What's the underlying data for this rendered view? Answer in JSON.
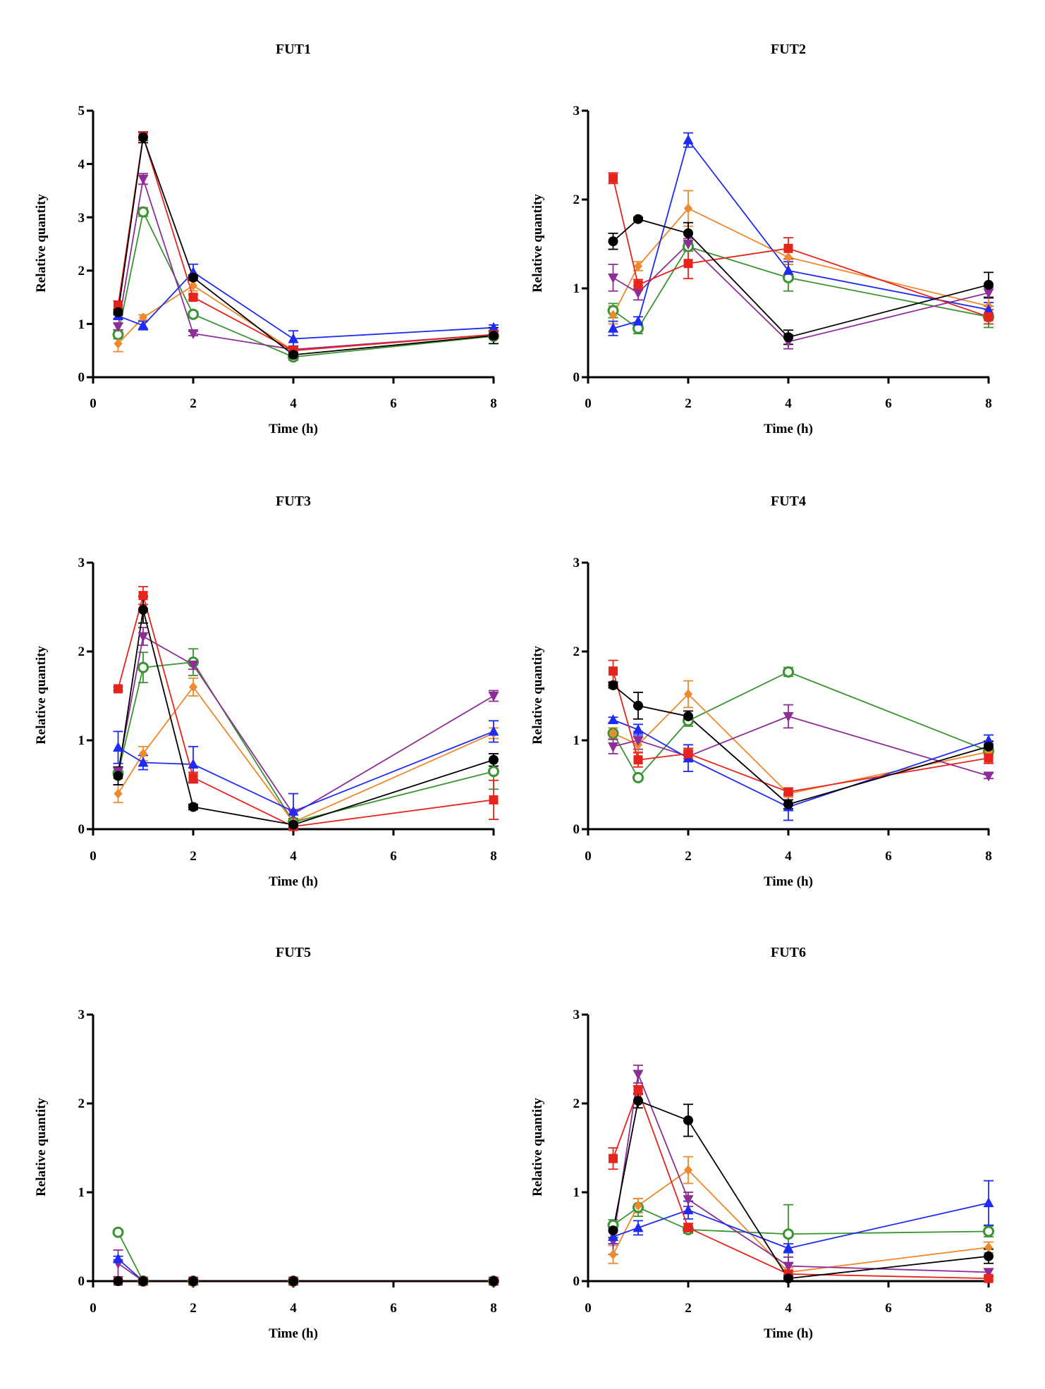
{
  "figure": {
    "ylabel_text": "Relative quantity",
    "xlabel_text": "Time (h)"
  },
  "series_styles": [
    {
      "name": "black",
      "color": "#000000",
      "marker": "circle"
    },
    {
      "name": "red",
      "color": "#e8231c",
      "marker": "square"
    },
    {
      "name": "blue",
      "color": "#1e2bf5",
      "marker": "triangle-up"
    },
    {
      "name": "purple",
      "color": "#8e2d97",
      "marker": "triangle-down"
    },
    {
      "name": "orange",
      "color": "#f0882c",
      "marker": "diamond"
    },
    {
      "name": "green",
      "color": "#3a9432",
      "marker": "circle-open"
    }
  ],
  "chart_data": [
    {
      "type": "line",
      "title": "FUT1",
      "xlabel": "Time (h)",
      "ylabel": "Relative quantity",
      "x": [
        0.5,
        1,
        2,
        4,
        8
      ],
      "xlim": [
        0,
        8
      ],
      "ylim": [
        0,
        5
      ],
      "xticks": [
        "0",
        "2",
        "4",
        "6",
        "8"
      ],
      "yticks": [
        "0",
        "1",
        "2",
        "3",
        "4",
        "5"
      ],
      "series": [
        {
          "name": "black",
          "values": [
            1.22,
            4.5,
            1.87,
            0.42,
            0.78
          ],
          "errors": [
            0.05,
            0.1,
            0.05,
            0.04,
            0.15
          ]
        },
        {
          "name": "red",
          "values": [
            1.35,
            4.52,
            1.5,
            0.5,
            0.8
          ],
          "errors": [
            0.08,
            0.08,
            0.05,
            0.04,
            0.06
          ]
        },
        {
          "name": "blue",
          "values": [
            1.15,
            0.97,
            1.97,
            0.72,
            0.93
          ],
          "errors": [
            0.05,
            0.08,
            0.15,
            0.15,
            0.05
          ]
        },
        {
          "name": "purple",
          "values": [
            0.95,
            3.72,
            0.82,
            0.52,
            0.8
          ],
          "errors": [
            0.06,
            0.1,
            0.04,
            0.05,
            0.05
          ]
        },
        {
          "name": "orange",
          "values": [
            0.63,
            1.12,
            1.72,
            0.5,
            0.8
          ],
          "errors": [
            0.15,
            0.05,
            0.1,
            0.05,
            0.05
          ]
        },
        {
          "name": "green",
          "values": [
            0.8,
            3.1,
            1.18,
            0.38,
            0.77
          ],
          "errors": [
            0.08,
            0.08,
            0.05,
            0.06,
            0.05
          ]
        }
      ]
    },
    {
      "type": "line",
      "title": "FUT2",
      "xlabel": "Time (h)",
      "ylabel": "Relative quantity",
      "x": [
        0.5,
        1,
        2,
        4,
        8
      ],
      "xlim": [
        0,
        8
      ],
      "ylim": [
        0,
        3
      ],
      "xticks": [
        "0",
        "2",
        "4",
        "6",
        "8"
      ],
      "yticks": [
        "0",
        "1",
        "2",
        "3"
      ],
      "series": [
        {
          "name": "black",
          "values": [
            1.53,
            1.78,
            1.62,
            0.45,
            1.04
          ],
          "errors": [
            0.09,
            0.02,
            0.12,
            0.08,
            0.14
          ]
        },
        {
          "name": "red",
          "values": [
            2.24,
            1.04,
            1.28,
            1.45,
            0.68
          ],
          "errors": [
            0.06,
            0.06,
            0.17,
            0.12,
            0.08
          ]
        },
        {
          "name": "blue",
          "values": [
            0.55,
            0.63,
            2.67,
            1.2,
            0.76
          ],
          "errors": [
            0.08,
            0.05,
            0.08,
            0.1,
            0.08
          ]
        },
        {
          "name": "purple",
          "values": [
            1.12,
            0.95,
            1.5,
            0.4,
            0.95
          ],
          "errors": [
            0.15,
            0.08,
            0.06,
            0.08,
            0.06
          ]
        },
        {
          "name": "orange",
          "values": [
            0.7,
            1.25,
            1.9,
            1.35,
            0.8
          ],
          "errors": [
            0.1,
            0.05,
            0.2,
            0.08,
            0.1
          ]
        },
        {
          "name": "green",
          "values": [
            0.75,
            0.55,
            1.47,
            1.12,
            0.68
          ],
          "errors": [
            0.08,
            0.06,
            0.05,
            0.15,
            0.12
          ]
        }
      ]
    },
    {
      "type": "line",
      "title": "FUT3",
      "xlabel": "Time (h)",
      "ylabel": "Relative quantity",
      "x": [
        0.5,
        1,
        2,
        4,
        8
      ],
      "xlim": [
        0,
        8
      ],
      "ylim": [
        0,
        3
      ],
      "xticks": [
        "0",
        "2",
        "4",
        "6",
        "8"
      ],
      "yticks": [
        "0",
        "1",
        "2",
        "3"
      ],
      "series": [
        {
          "name": "black",
          "values": [
            0.6,
            2.47,
            0.25,
            0.05,
            0.78
          ],
          "errors": [
            0.1,
            0.15,
            0.03,
            0.03,
            0.07
          ]
        },
        {
          "name": "red",
          "values": [
            1.58,
            2.63,
            0.58,
            0.03,
            0.33
          ],
          "errors": [
            0.02,
            0.1,
            0.06,
            0.02,
            0.22
          ]
        },
        {
          "name": "blue",
          "values": [
            0.92,
            0.75,
            0.73,
            0.2,
            1.1
          ],
          "errors": [
            0.18,
            0.08,
            0.2,
            0.2,
            0.12
          ]
        },
        {
          "name": "purple",
          "values": [
            0.65,
            2.17,
            1.85,
            0.17,
            1.5
          ],
          "errors": [
            0.05,
            0.1,
            0.05,
            0.05,
            0.06
          ]
        },
        {
          "name": "orange",
          "values": [
            0.4,
            0.85,
            1.6,
            0.08,
            1.08
          ],
          "errors": [
            0.1,
            0.08,
            0.1,
            0.04,
            0.06
          ]
        },
        {
          "name": "green",
          "values": [
            0.63,
            1.82,
            1.88,
            0.08,
            0.65
          ],
          "errors": [
            0.06,
            0.17,
            0.15,
            0.03,
            0.2
          ]
        }
      ]
    },
    {
      "type": "line",
      "title": "FUT4",
      "xlabel": "Time (h)",
      "ylabel": "Relative quantity",
      "x": [
        0.5,
        1,
        2,
        4,
        8
      ],
      "xlim": [
        0,
        8
      ],
      "ylim": [
        0,
        3
      ],
      "xticks": [
        "0",
        "2",
        "4",
        "6",
        "8"
      ],
      "yticks": [
        "0",
        "1",
        "2",
        "3"
      ],
      "series": [
        {
          "name": "black",
          "values": [
            1.62,
            1.39,
            1.27,
            0.28,
            0.93
          ],
          "errors": [
            0.03,
            0.15,
            0.06,
            0.05,
            0.06
          ]
        },
        {
          "name": "red",
          "values": [
            1.78,
            0.78,
            0.85,
            0.42,
            0.8
          ],
          "errors": [
            0.12,
            0.08,
            0.06,
            0.04,
            0.06
          ]
        },
        {
          "name": "blue",
          "values": [
            1.23,
            1.12,
            0.8,
            0.25,
            1.0
          ],
          "errors": [
            0.03,
            0.06,
            0.15,
            0.15,
            0.06
          ]
        },
        {
          "name": "purple",
          "values": [
            0.93,
            1.0,
            0.82,
            1.27,
            0.6
          ],
          "errors": [
            0.08,
            0.1,
            0.06,
            0.13,
            0.03
          ]
        },
        {
          "name": "orange",
          "values": [
            1.08,
            0.95,
            1.52,
            0.4,
            0.87
          ],
          "errors": [
            0.06,
            0.08,
            0.15,
            0.04,
            0.06
          ]
        },
        {
          "name": "green",
          "values": [
            1.08,
            0.58,
            1.22,
            1.77,
            0.88
          ],
          "errors": [
            0.06,
            0.03,
            0.06,
            0.05,
            0.04
          ]
        }
      ]
    },
    {
      "type": "line",
      "title": "FUT5",
      "xlabel": "Time (h)",
      "ylabel": "Relative quantity",
      "x": [
        0.5,
        1,
        2,
        4,
        8
      ],
      "xlim": [
        0,
        8
      ],
      "ylim": [
        0,
        3
      ],
      "xticks": [
        "0",
        "2",
        "4",
        "6",
        "8"
      ],
      "yticks": [
        "0",
        "1",
        "2",
        "3"
      ],
      "series": [
        {
          "name": "black",
          "values": [
            0.0,
            0.0,
            0.0,
            0.0,
            0.0
          ],
          "errors": [
            0,
            0,
            0,
            0,
            0
          ]
        },
        {
          "name": "red",
          "values": [
            0.0,
            0.0,
            0.0,
            0.0,
            0.0
          ],
          "errors": [
            0,
            0,
            0,
            0,
            0
          ]
        },
        {
          "name": "blue",
          "values": [
            0.25,
            0.0,
            0.0,
            0.0,
            0.0
          ],
          "errors": [
            0.03,
            0,
            0,
            0,
            0
          ]
        },
        {
          "name": "purple",
          "values": [
            0.2,
            0.0,
            0.0,
            0.0,
            0.0
          ],
          "errors": [
            0.15,
            0,
            0,
            0,
            0
          ]
        },
        {
          "name": "orange",
          "values": [
            0.0,
            0.0,
            0.0,
            0.0,
            0.0
          ],
          "errors": [
            0,
            0,
            0,
            0,
            0
          ]
        },
        {
          "name": "green",
          "values": [
            0.55,
            0.0,
            0.0,
            0.0,
            0.0
          ],
          "errors": [
            0.03,
            0,
            0,
            0,
            0
          ]
        }
      ]
    },
    {
      "type": "line",
      "title": "FUT6",
      "xlabel": "Time (h)",
      "ylabel": "Relative quantity",
      "x": [
        0.5,
        1,
        2,
        4,
        8
      ],
      "xlim": [
        0,
        8
      ],
      "ylim": [
        0,
        3
      ],
      "xticks": [
        "0",
        "2",
        "4",
        "6",
        "8"
      ],
      "yticks": [
        "0",
        "1",
        "2",
        "3"
      ],
      "series": [
        {
          "name": "black",
          "values": [
            0.57,
            2.03,
            1.81,
            0.03,
            0.28
          ],
          "errors": [
            0.08,
            0.08,
            0.18,
            0.03,
            0.08
          ]
        },
        {
          "name": "red",
          "values": [
            1.38,
            2.15,
            0.6,
            0.08,
            0.03
          ],
          "errors": [
            0.12,
            0.05,
            0.05,
            0.04,
            0.02
          ]
        },
        {
          "name": "blue",
          "values": [
            0.5,
            0.6,
            0.8,
            0.37,
            0.88
          ],
          "errors": [
            0.08,
            0.08,
            0.1,
            0.05,
            0.25
          ]
        },
        {
          "name": "purple",
          "values": [
            0.45,
            2.33,
            0.92,
            0.17,
            0.1
          ],
          "errors": [
            0.15,
            0.1,
            0.08,
            0.1,
            0.04
          ]
        },
        {
          "name": "orange",
          "values": [
            0.3,
            0.85,
            1.25,
            0.1,
            0.38
          ],
          "errors": [
            0.1,
            0.08,
            0.15,
            0.05,
            0.06
          ]
        },
        {
          "name": "green",
          "values": [
            0.63,
            0.83,
            0.58,
            0.53,
            0.56
          ],
          "errors": [
            0.06,
            0.1,
            0.04,
            0.33,
            0.06
          ]
        }
      ]
    }
  ]
}
